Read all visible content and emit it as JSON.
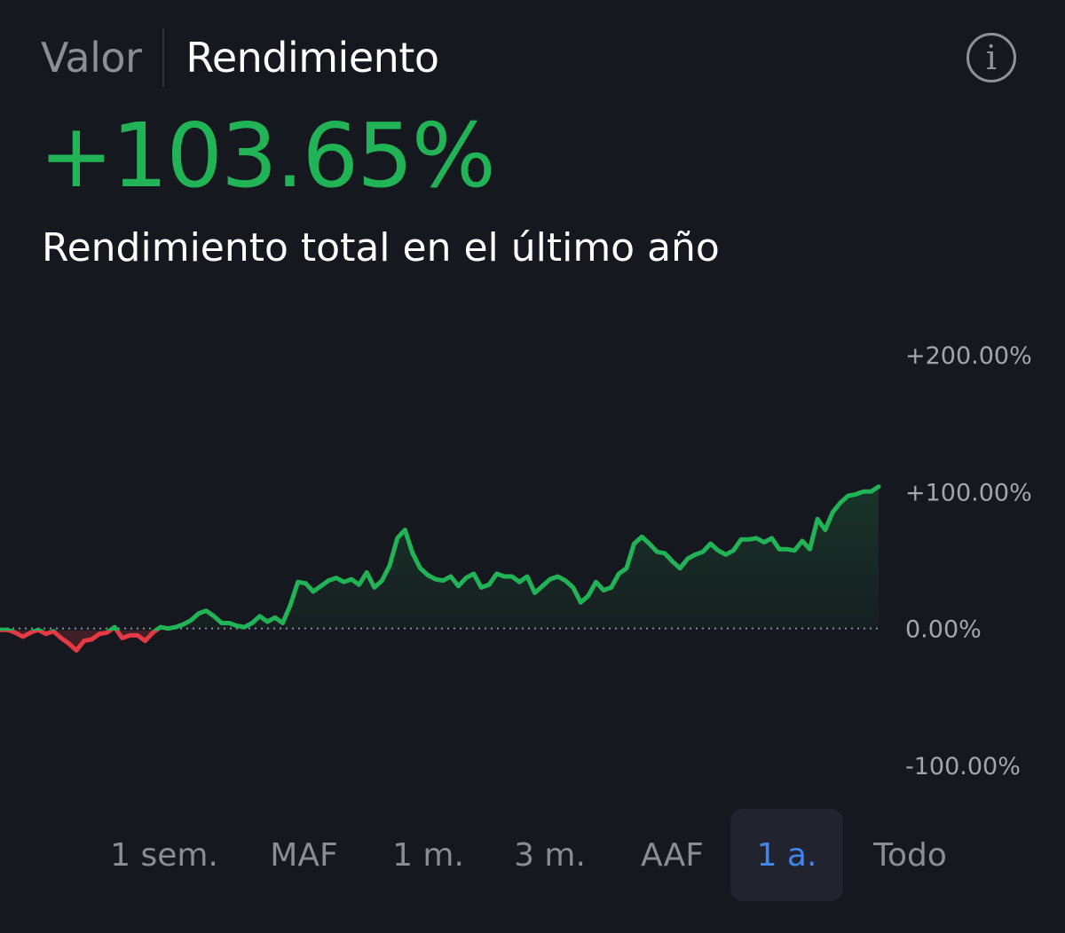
{
  "tabs": [
    {
      "label": "Valor",
      "active": false
    },
    {
      "label": "Rendimiento",
      "active": true
    }
  ],
  "info_icon": "info-icon",
  "headline": {
    "value": "+103.65%",
    "subtitle": "Rendimiento total en el último año"
  },
  "colors": {
    "positive": "#21b457",
    "negative": "#e53944",
    "accent": "#3f86ef",
    "background": "#16181f"
  },
  "range_buttons": [
    {
      "label": "1 sem.",
      "selected": false
    },
    {
      "label": "MAF",
      "selected": false
    },
    {
      "label": "1 m.",
      "selected": false
    },
    {
      "label": "3 m.",
      "selected": false
    },
    {
      "label": "AAF",
      "selected": false
    },
    {
      "label": "1 a.",
      "selected": true
    },
    {
      "label": "Todo",
      "selected": false
    }
  ],
  "chart_data": {
    "type": "area",
    "x_axis": "time (1 year)",
    "y_unit": "%",
    "ylim": [
      -100,
      200
    ],
    "y_ticks": [
      200,
      100,
      0,
      -100
    ],
    "y_tick_labels": [
      "+200.00%",
      "+100.00%",
      "0.00%",
      "-100.00%"
    ],
    "baseline": 0,
    "baseline_style": "dotted",
    "grid": false,
    "series": [
      {
        "values": [
          -1,
          -1,
          -3,
          -6,
          -3,
          -1,
          -4,
          -2,
          -7,
          -11,
          -16,
          -9,
          -8,
          -4,
          -3,
          1,
          -7,
          -5,
          -5,
          -9,
          -3,
          1,
          0,
          1,
          3,
          6,
          11,
          13,
          9,
          4,
          4,
          2,
          1,
          4,
          9,
          5,
          8,
          4,
          17,
          34,
          33,
          27,
          31,
          35,
          37,
          34,
          36,
          32,
          41,
          30,
          35,
          46,
          66,
          72,
          55,
          44,
          39,
          36,
          35,
          38,
          31,
          37,
          40,
          30,
          32,
          40,
          38,
          38,
          34,
          38,
          26,
          31,
          36,
          38,
          35,
          30,
          19,
          24,
          34,
          28,
          30,
          40,
          44,
          62,
          67,
          62,
          56,
          55,
          49,
          44,
          51,
          54,
          56,
          62,
          57,
          54,
          57,
          65,
          65,
          66,
          63,
          66,
          58,
          58,
          57,
          64,
          58,
          80,
          72,
          85,
          92,
          97,
          98,
          100,
          100,
          103.65
        ]
      }
    ]
  }
}
